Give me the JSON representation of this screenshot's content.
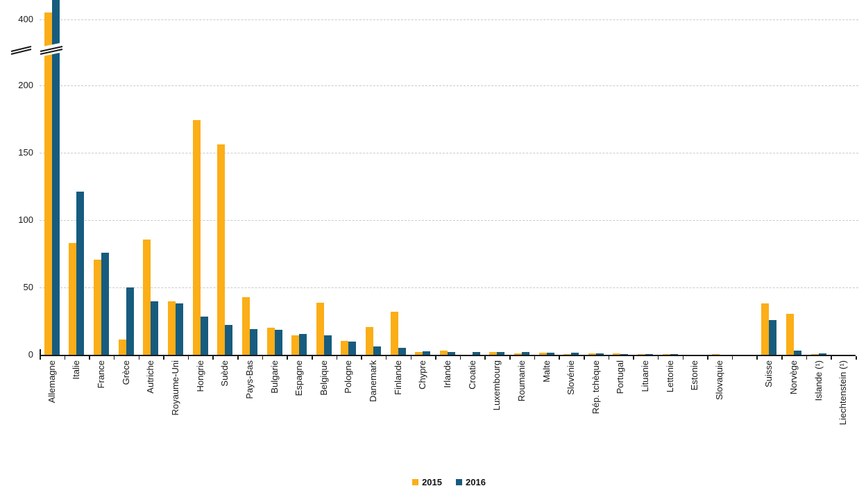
{
  "chart_data": {
    "type": "bar",
    "title": "",
    "categories": [
      "Allemagne",
      "Italie",
      "France",
      "Grèce",
      "Autriche",
      "Royaume-Uni",
      "Hongrie",
      "Suède",
      "Pays-Bas",
      "Bulgarie",
      "Espagne",
      "Belgique",
      "Pologne",
      "Danemark",
      "Finlande",
      "Chypre",
      "Irlande",
      "Croatie",
      "Luxembourg",
      "Roumanie",
      "Malte",
      "Slovénie",
      "Rép. tchèque",
      "Portugal",
      "Lituanie",
      "Lettonie",
      "Estonie",
      "Slovaquie",
      "Suisse",
      "Norvège",
      "Islande (¹)",
      "Liechtenstein (¹)"
    ],
    "separator_gap_after": "Slovaquie",
    "series": [
      {
        "name": "2015",
        "color": "#FBAE17",
        "values": [
          441.8,
          83.2,
          70.6,
          11.4,
          85.5,
          39.7,
          174.4,
          156.1,
          43.0,
          20.2,
          14.6,
          38.7,
          10.3,
          20.8,
          32.2,
          2.1,
          3.3,
          0.1,
          2.3,
          1.2,
          1.7,
          0.3,
          1.2,
          0.8,
          0.3,
          0.3,
          0.2,
          0.3,
          38.0,
          30.5,
          0.3,
          0.1
        ]
      },
      {
        "name": "2016",
        "color": "#175C7F",
        "values": [
          722.3,
          121.2,
          76.0,
          49.9,
          39.9,
          38.3,
          28.2,
          22.3,
          19.3,
          18.6,
          15.3,
          14.3,
          9.8,
          6.1,
          5.3,
          2.8,
          2.2,
          2.2,
          2.0,
          1.9,
          1.7,
          1.3,
          1.2,
          0.7,
          0.4,
          0.3,
          0.1,
          0.1,
          25.8,
          3.2,
          1.1,
          0.1
        ]
      }
    ],
    "y_axis": {
      "ticks": [
        0,
        50,
        100,
        150,
        200,
        400
      ],
      "axis_break_between": [
        200,
        400
      ],
      "gridlines": "dashed",
      "top_value_clipped": 722.3
    },
    "legend": {
      "position": "bottom-center",
      "items": [
        "2015",
        "2016"
      ]
    },
    "xlabel": "",
    "ylabel": ""
  }
}
